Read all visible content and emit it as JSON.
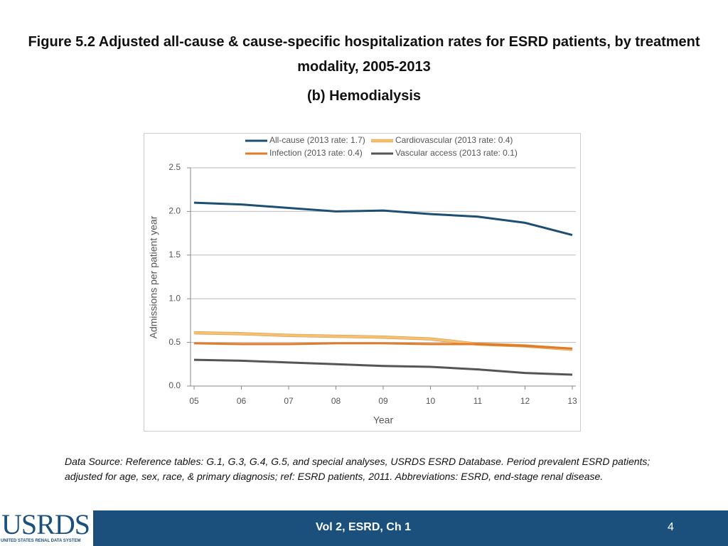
{
  "chart_data": {
    "type": "line",
    "title": "Figure 5.2 Adjusted all-cause & cause-specific hospitalization rates for ESRD patients, by treatment modality, 2005-2013",
    "subtitle": "(b) Hemodialysis",
    "x_label": "Year",
    "y_label": "Admissions per patient year",
    "categories": [
      "05",
      "06",
      "07",
      "08",
      "09",
      "10",
      "11",
      "12",
      "13"
    ],
    "series": [
      {
        "name": "All-cause (2013 rate: 1.7)",
        "color": "#1d4f73",
        "values": [
          2.1,
          2.08,
          2.04,
          2.0,
          2.01,
          1.97,
          1.94,
          1.87,
          1.73
        ]
      },
      {
        "name": "Cardiovascular (2013 rate: 0.4)",
        "color": "#f4c272",
        "values": [
          0.61,
          0.6,
          0.58,
          0.57,
          0.56,
          0.54,
          0.48,
          0.46,
          0.42
        ]
      },
      {
        "name": "Infection (2013 rate: 0.4)",
        "color": "#e07b2a",
        "values": [
          0.49,
          0.48,
          0.48,
          0.49,
          0.49,
          0.48,
          0.48,
          0.46,
          0.43
        ]
      },
      {
        "name": "Vascular access (2013 rate: 0.1)",
        "color": "#555555",
        "values": [
          0.3,
          0.29,
          0.27,
          0.25,
          0.23,
          0.22,
          0.19,
          0.15,
          0.13
        ]
      }
    ],
    "ylim": [
      0,
      2.5
    ],
    "yticks": [
      {
        "value": 0,
        "label": "0.0"
      },
      0.5,
      {
        "value": 1,
        "label": "1.0"
      },
      1.5,
      {
        "value": 2,
        "label": "2.0"
      },
      2.5
    ],
    "grid": true
  },
  "note": "Data Source: Reference tables: G.1, G.3, G.4, G.5, and special analyses, USRDS ESRD Database. Period prevalent ESRD patients; adjusted for age, sex, race, & primary diagnosis; ref: ESRD patients, 2011. Abbreviations: ESRD, end-stage renal disease.",
  "footer": "Vol 2, ESRD, Ch 1",
  "page_number": "4",
  "logo": {
    "name": "USRDS",
    "full_name": "UNITED STATES RENAL DATA SYSTEM"
  }
}
